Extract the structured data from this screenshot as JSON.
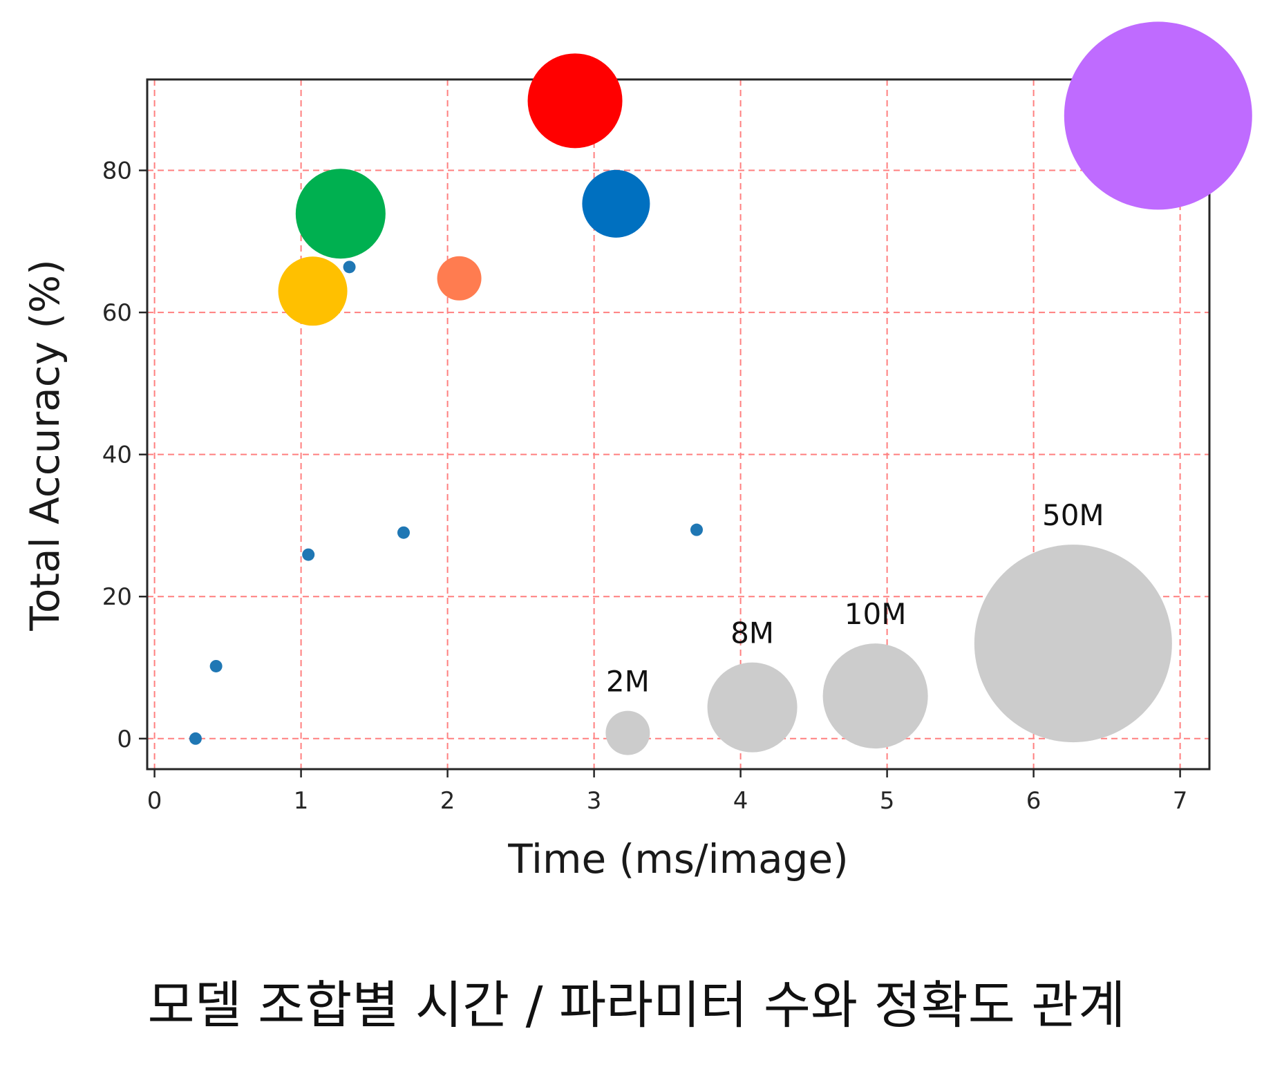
{
  "caption": "모델 조합별 시간 / 파라미터 수와 정확도 관계",
  "chart_data": {
    "type": "scatter",
    "xlabel": "Time (ms/image)",
    "ylabel": "Total Accuracy (%)",
    "xlim": [
      -0.05,
      7.2
    ],
    "ylim": [
      -4.3,
      92.8
    ],
    "xticks": [
      "0",
      "1",
      "2",
      "3",
      "4",
      "5",
      "6",
      "7"
    ],
    "yticks": [
      "0",
      "20",
      "40",
      "60",
      "80"
    ],
    "grid": true,
    "grid_color": "#ff7f7f",
    "small_points": {
      "color": "#1f77b4",
      "points": [
        {
          "x": 0.28,
          "y": 0
        },
        {
          "x": 0.42,
          "y": 10.2
        },
        {
          "x": 1.05,
          "y": 25.9
        },
        {
          "x": 1.7,
          "y": 29.0
        },
        {
          "x": 3.7,
          "y": 29.4
        },
        {
          "x": 1.33,
          "y": 66.4
        }
      ]
    },
    "bubbles": [
      {
        "x": 1.08,
        "y": 63.0,
        "size": 100,
        "color": "#ffc000"
      },
      {
        "x": 1.27,
        "y": 73.9,
        "size": 130,
        "color": "#00b050"
      },
      {
        "x": 2.08,
        "y": 64.8,
        "size": 64,
        "color": "#ff7c50"
      },
      {
        "x": 2.87,
        "y": 89.8,
        "size": 137,
        "color": "#ff0000"
      },
      {
        "x": 3.15,
        "y": 75.3,
        "size": 98,
        "color": "#0070c0"
      },
      {
        "x": 6.85,
        "y": 87.7,
        "size": 272,
        "color": "#bf6bff"
      }
    ],
    "size_legend": {
      "color": "#cccccc",
      "items": [
        {
          "label": "2M",
          "x": 3.23,
          "y": 0.8,
          "size": 64
        },
        {
          "label": "8M",
          "x": 4.08,
          "y": 4.4,
          "size": 130
        },
        {
          "label": "10M",
          "x": 4.92,
          "y": 6.0,
          "size": 152
        },
        {
          "label": "50M",
          "x": 6.27,
          "y": 13.4,
          "size": 286
        }
      ]
    }
  }
}
